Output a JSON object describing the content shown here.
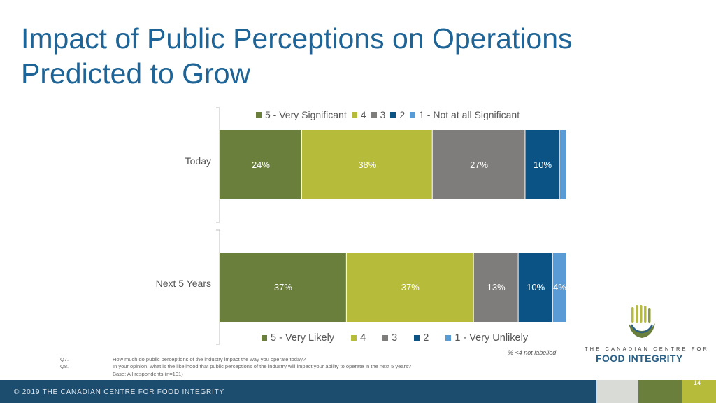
{
  "title": {
    "line1": "Impact of Public Perceptions on Operations",
    "line2": "Predicted to Grow"
  },
  "chart_data": [
    {
      "type": "bar",
      "orientation": "horizontal",
      "stacked": true,
      "categories": [
        "Today"
      ],
      "legend": [
        "5 - Very Significant",
        "4",
        "3",
        "2",
        "1 - Not at all Significant"
      ],
      "series": [
        {
          "name": "5 - Very Significant",
          "values": [
            24
          ],
          "label": "24%"
        },
        {
          "name": "4",
          "values": [
            38
          ],
          "label": "38%"
        },
        {
          "name": "3",
          "values": [
            27
          ],
          "label": "27%"
        },
        {
          "name": "2",
          "values": [
            10
          ],
          "label": "10%"
        },
        {
          "name": "1 - Not at all Significant",
          "values": [
            2
          ],
          "label": ""
        }
      ],
      "xlim": [
        0,
        100
      ]
    },
    {
      "type": "bar",
      "orientation": "horizontal",
      "stacked": true,
      "categories": [
        "Next 5 Years"
      ],
      "legend": [
        "5 - Very Likely",
        "4",
        "3",
        "2",
        "1 - Very Unlikely"
      ],
      "series": [
        {
          "name": "5 - Very Likely",
          "values": [
            37
          ],
          "label": "37%"
        },
        {
          "name": "4",
          "values": [
            37
          ],
          "label": "37%"
        },
        {
          "name": "3",
          "values": [
            13
          ],
          "label": "13%"
        },
        {
          "name": "2",
          "values": [
            10
          ],
          "label": "10%"
        },
        {
          "name": "1 - Very Unlikely",
          "values": [
            4
          ],
          "label": "4%"
        }
      ],
      "xlim": [
        0,
        100
      ]
    }
  ],
  "colors": {
    "s5": "#6a7f3b",
    "s4": "#b7bb3a",
    "s3": "#7f7d7b",
    "s2": "#0b5384",
    "s1": "#5b9bd5",
    "title": "#1f6496",
    "footer": "#1d4d6e"
  },
  "legend_top": [
    "5 - Very Significant",
    "4",
    "3",
    "2",
    "1 - Not at all Significant"
  ],
  "legend_bottom": [
    "5 - Very Likely",
    "4",
    "3",
    "2",
    "1 - Very Unlikely"
  ],
  "note": "% <4 not labelled",
  "questions": [
    {
      "id": "Q7.",
      "text": "How much do public perceptions of the industry impact the way you operate today?"
    },
    {
      "id": "Q8.",
      "text": "In your opinion, what is the likelihood that public perceptions of the industry will impact your ability to operate in the next 5 years?"
    }
  ],
  "base": "Base: All respondents (n=101)",
  "footer": {
    "copyright": "© 2019 THE CANADIAN CENTRE FOR FOOD INTEGRITY",
    "page_number": "14"
  },
  "logo": {
    "line1": "THE CANADIAN CENTRE FOR",
    "line2": "FOOD INTEGRITY"
  }
}
